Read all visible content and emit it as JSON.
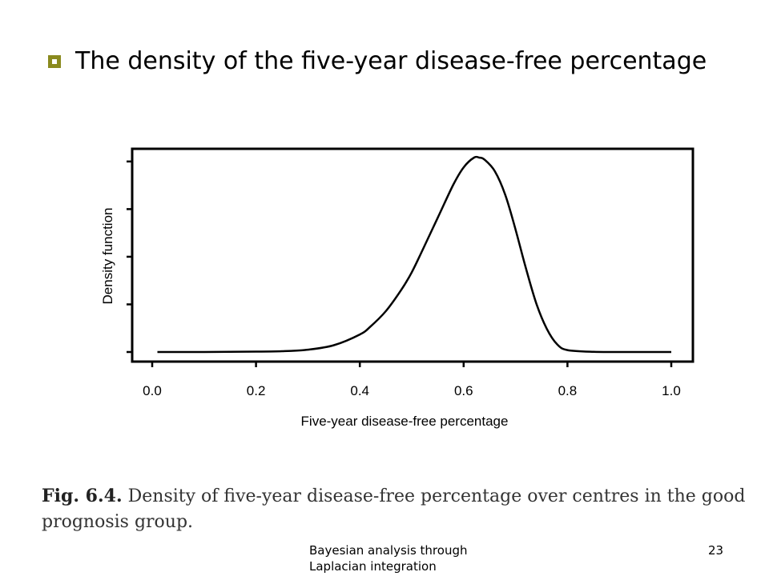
{
  "slide": {
    "bullet_text": "The density of the five-year disease-free percentage",
    "caption_label": "Fig. 6.4.",
    "caption_text": "Density of five-year disease-free percentage over centres in the good prognosis group.",
    "footer_text": "Bayesian analysis through Laplacian integration",
    "page_number": "23"
  },
  "colors": {
    "bullet": "#8a8a1e",
    "curve": "#000000"
  },
  "icons": {
    "bullet": "square-bullet-icon"
  },
  "chart_data": {
    "type": "line",
    "xlabel": "Five-year disease-free percentage",
    "ylabel": "Density function",
    "xlim": [
      -0.03,
      1.08
    ],
    "ylim": [
      0,
      1
    ],
    "x_ticks": [
      "0.0",
      "0.2",
      "0.4",
      "0.6",
      "0.8",
      "1.0"
    ],
    "y_tick_labels_shown": false,
    "grid": false,
    "series": [
      {
        "x": [
          0.01,
          0.05,
          0.1,
          0.15,
          0.2,
          0.25,
          0.3,
          0.35,
          0.4,
          0.42,
          0.45,
          0.48,
          0.5,
          0.52,
          0.55,
          0.58,
          0.6,
          0.62,
          0.63,
          0.64,
          0.66,
          0.68,
          0.7,
          0.72,
          0.74,
          0.76,
          0.78,
          0.8,
          0.85,
          0.9,
          0.95,
          1.0
        ],
        "y": [
          0.0,
          0.0,
          0.0,
          0.001,
          0.002,
          0.004,
          0.012,
          0.035,
          0.09,
          0.13,
          0.21,
          0.32,
          0.41,
          0.52,
          0.69,
          0.86,
          0.95,
          1.0,
          1.0,
          0.99,
          0.93,
          0.81,
          0.63,
          0.43,
          0.25,
          0.12,
          0.04,
          0.01,
          0.001,
          0.0,
          0.0,
          0.0
        ]
      }
    ]
  }
}
